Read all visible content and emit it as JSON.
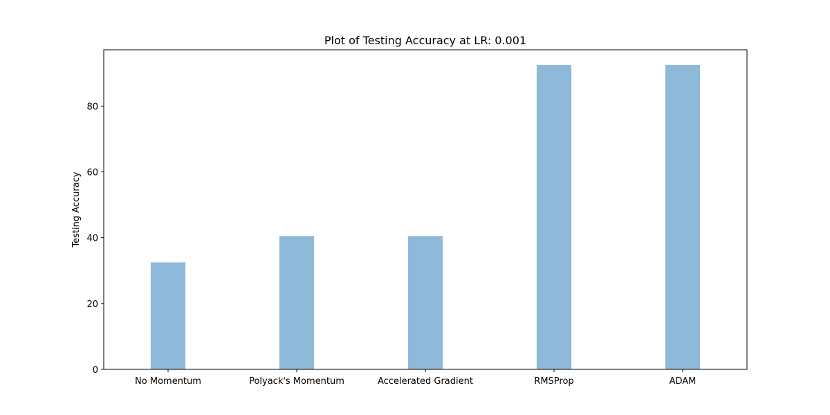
{
  "chart_data": {
    "type": "bar",
    "title": "Plot of Testing Accuracy at LR: 0.001",
    "xlabel": "",
    "ylabel": "Testing Accuracy",
    "categories": [
      "No Momentum",
      "Polyack's Momentum",
      "Accelerated Gradient",
      "RMSProp",
      "ADAM"
    ],
    "values": [
      32.5,
      40.5,
      40.5,
      92.5,
      92.5
    ],
    "ylim": [
      0,
      97.1
    ],
    "yticks": [
      0,
      20,
      40,
      60,
      80
    ],
    "grid": false,
    "bar_color": "#8fb9d8"
  }
}
